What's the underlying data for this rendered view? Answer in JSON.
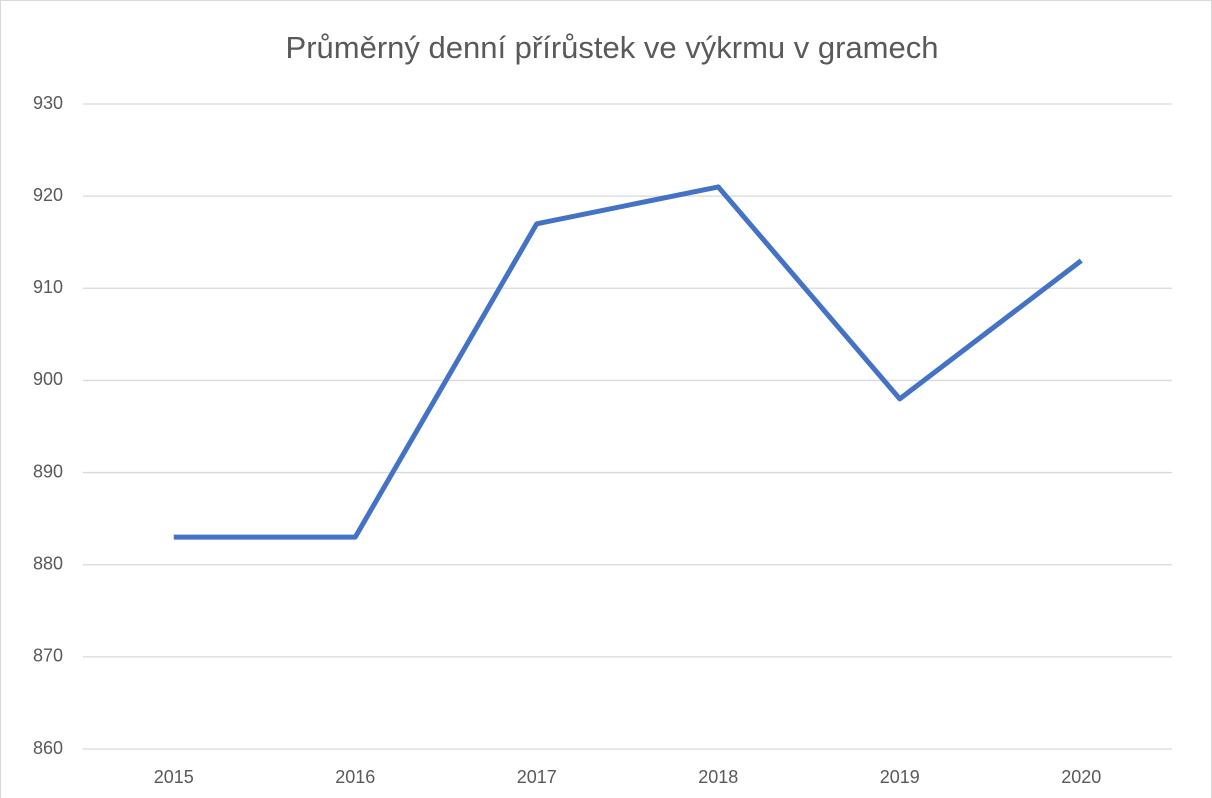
{
  "chart_data": {
    "type": "line",
    "title": "Průměrný denní přírůstek ve výkrmu v gramech",
    "categories": [
      "2015",
      "2016",
      "2017",
      "2018",
      "2019",
      "2020"
    ],
    "series": [
      {
        "color": "#4472c4",
        "values": [
          883,
          883,
          917,
          921,
          898,
          913
        ]
      }
    ],
    "ylim": [
      860,
      930
    ],
    "yticks": [
      860,
      870,
      880,
      890,
      900,
      910,
      920,
      930
    ],
    "grid": true
  }
}
